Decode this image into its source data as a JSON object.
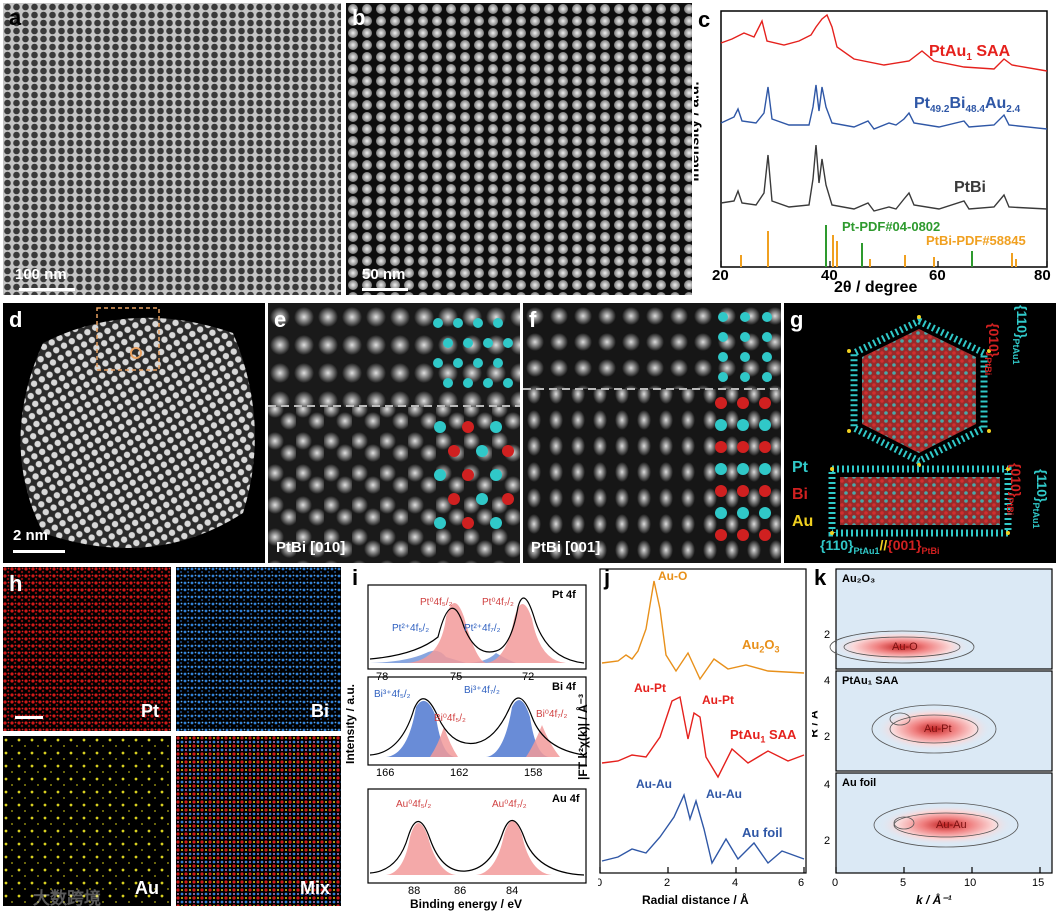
{
  "panels": {
    "a": {
      "letter": "a",
      "scale": "100 nm"
    },
    "b": {
      "letter": "b",
      "scale": "50 nm"
    },
    "c": {
      "letter": "c",
      "xlabel": "2θ / degree",
      "ylabel": "Intensity / a.u.",
      "xticks": [
        "20",
        "40",
        "60",
        "80"
      ],
      "ptau_main": "PtAu",
      "ptau_sub": "1",
      "ptau_tail": " SAA",
      "ptbiau": {
        "pt": "Pt",
        "pt_sub": "49.2",
        "bi": "Bi",
        "bi_sub": "48.4",
        "au": "Au",
        "au_sub": "2.4"
      },
      "ptbi": "PtBi",
      "pdf_pt": "Pt-PDF#04-0802",
      "pdf_ptbi": "PtBi-PDF#58845"
    },
    "d": {
      "letter": "d",
      "scale": "2 nm"
    },
    "e": {
      "letter": "e",
      "zone": "PtBi [010]"
    },
    "f": {
      "letter": "f",
      "zone": "PtBi [001]"
    },
    "g": {
      "letter": "g",
      "legend": [
        "Pt",
        "Bi",
        "Au"
      ],
      "plane110": "{110}",
      "ptau_sub": "PtAu",
      "ptau_sub_1": "1",
      "plane010": "{010}",
      "ptbi_sub": "PtBi",
      "plane001": "{001}",
      "sep": "//"
    },
    "h": {
      "letter": "h",
      "labels": [
        "Pt",
        "Bi",
        "Au",
        "Mix"
      ]
    },
    "i": {
      "letter": "i",
      "ylabel": "Intensity / a.u.",
      "xlabel": "Binding energy / eV",
      "sub1": {
        "title": "Pt 4f",
        "ticks": [
          "78",
          "75",
          "72"
        ],
        "peaks": [
          "Pt⁰4f₅/₂",
          "Pt⁰4f₇/₂",
          "Pt²⁺4f₅/₂",
          "Pt²⁺4f₇/₂"
        ]
      },
      "sub2": {
        "title": "Bi 4f",
        "ticks": [
          "166",
          "162",
          "158"
        ],
        "peaks": [
          "Bi³⁺4f₅/₂",
          "Bi⁰4f₅/₂",
          "Bi³⁺4f₇/₂",
          "Bi⁰4f₇/₂"
        ]
      },
      "sub3": {
        "title": "Au 4f",
        "ticks": [
          "88",
          "86",
          "84"
        ],
        "peaks": [
          "Au⁰4f₅/₂",
          "Au⁰4f₇/₂"
        ]
      }
    },
    "j": {
      "letter": "j",
      "ylabel": "|FT k²χ(k)| / Å⁻³",
      "xlabel": "Radial distance / Å",
      "xticks": [
        "0",
        "2",
        "4",
        "6"
      ],
      "labels": {
        "auo": "Au-O",
        "au2o3": "Au",
        "au2o3_sub1": "2",
        "au2o3_o": "O",
        "au2o3_sub2": "3",
        "aupt1": "Au-Pt",
        "aupt2": "Au-Pt",
        "ptausaa": "PtAu",
        "ptausaa_sub": "1",
        "ptausaa_tail": " SAA",
        "auau1": "Au-Au",
        "auau2": "Au-Au",
        "aufoil": "Au foil"
      }
    },
    "k": {
      "letter": "k",
      "ylabel": "R / Å",
      "xlabel": "k / Å⁻¹",
      "xticks": [
        "0",
        "5",
        "10",
        "15"
      ],
      "yticks": [
        "2",
        "4"
      ],
      "sub_titles": [
        "Au₂O₃",
        "PtAu₁ SAA",
        "Au foil"
      ],
      "blob_labels": [
        "Au-O",
        "Au-Pt",
        "Au-Au"
      ]
    }
  },
  "watermark": "大数跨境",
  "colors": {
    "ptausaa": "#e5211d",
    "ptbiau": "#2f57a6",
    "ptbi": "#3a3a3a",
    "pt_green": "#2e9a2e",
    "ptbi_orange": "#f0a020",
    "auo_orange": "#e8901a"
  },
  "chart_data": [
    {
      "type": "line",
      "title": "c",
      "xlabel": "2θ / degree",
      "ylabel": "Intensity / a.u.",
      "xlim": [
        20,
        80
      ],
      "series": [
        {
          "name": "PtAu1 SAA",
          "peaks_2theta": [
            29,
            40.8,
            60,
            75.5
          ]
        },
        {
          "name": "Pt49.2Bi48.4Au2.4",
          "peaks_2theta": [
            23.5,
            28.9,
            40.6,
            41.8,
            51.5,
            55.5,
            59.8,
            68.2,
            75.6
          ]
        },
        {
          "name": "PtBi",
          "peaks_2theta": [
            23.5,
            28.9,
            40.6,
            41.8,
            51.5,
            55.5,
            59.8,
            68.2,
            75.6
          ]
        },
        {
          "name": "Pt-PDF#04-0802",
          "positions": [
            39.8,
            46.2,
            67.5
          ]
        },
        {
          "name": "PtBi-PDF#58845",
          "positions": [
            23.5,
            28.9,
            41.8,
            55.5,
            59.8,
            75.6
          ]
        }
      ]
    },
    {
      "type": "line",
      "title": "j",
      "xlabel": "Radial distance / Å",
      "ylabel": "|FT k²χ(k)| / Å⁻³",
      "xlim": [
        0,
        6
      ],
      "series": [
        {
          "name": "Au2O3",
          "peaks_R": [
            1.6
          ]
        },
        {
          "name": "PtAu1 SAA",
          "peaks_R": [
            2.3,
            2.9
          ]
        },
        {
          "name": "Au foil",
          "peaks_R": [
            2.5,
            2.9
          ]
        }
      ]
    }
  ]
}
